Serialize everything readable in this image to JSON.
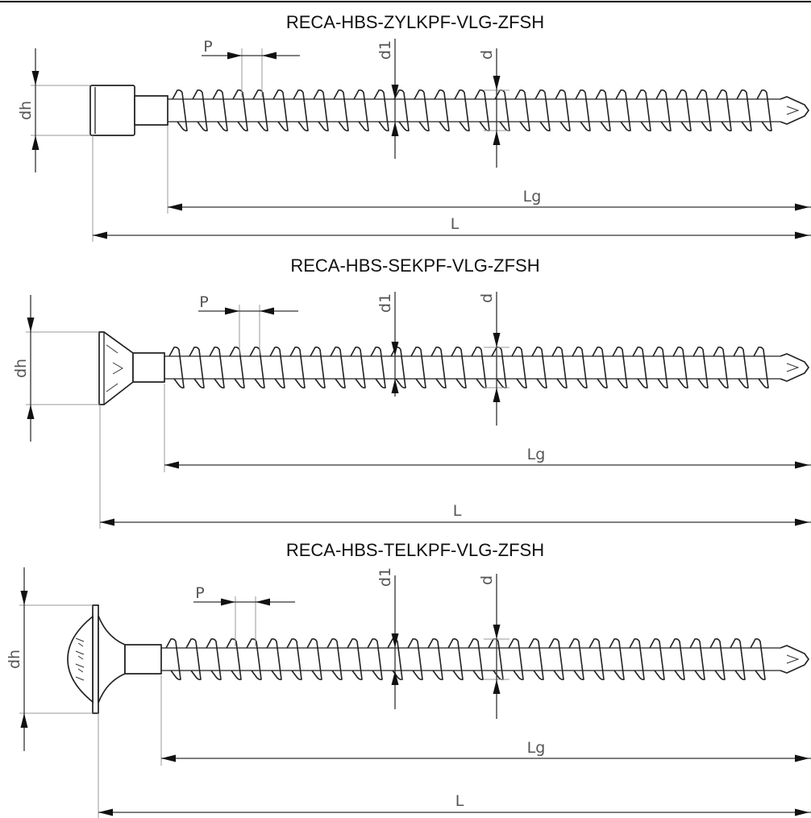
{
  "screws": [
    {
      "title": "RECA-HBS-ZYLKPF-VLG-ZFSH",
      "head": "cylinder",
      "labels": {
        "p": "P",
        "d1": "d1",
        "d": "d",
        "dh": "dh",
        "lg": "Lg",
        "l": "L"
      }
    },
    {
      "title": "RECA-HBS-SEKPF-VLG-ZFSH",
      "head": "countersunk",
      "labels": {
        "p": "P",
        "d1": "d1",
        "d": "d",
        "dh": "dh",
        "lg": "Lg",
        "l": "L"
      }
    },
    {
      "title": "RECA-HBS-TELKPF-VLG-ZFSH",
      "head": "washer",
      "labels": {
        "p": "P",
        "d1": "d1",
        "d": "d",
        "dh": "dh",
        "lg": "Lg",
        "l": "L"
      }
    }
  ]
}
